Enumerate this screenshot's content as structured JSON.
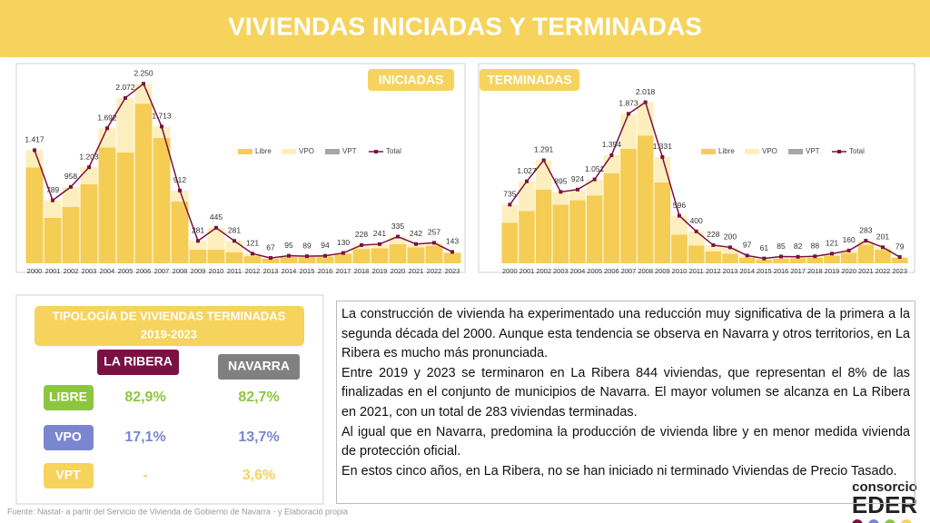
{
  "header": {
    "title": "VIVIENDAS INICIADAS Y TERMINADAS"
  },
  "chart_data": [
    {
      "type": "bar",
      "stacked": true,
      "title": "INICIADAS",
      "categories": [
        "2000",
        "2001",
        "2002",
        "2003",
        "2004",
        "2005",
        "2006",
        "2007",
        "2008",
        "2009",
        "2010",
        "2011",
        "2012",
        "2013",
        "2014",
        "2015",
        "2016",
        "2017",
        "2018",
        "2019",
        "2020",
        "2021",
        "2022",
        "2023"
      ],
      "series": [
        {
          "name": "Libre",
          "color": "#f5cd55",
          "values": [
            1200,
            570,
            707,
            990,
            1450,
            1390,
            2000,
            1570,
            775,
            170,
            170,
            140,
            90,
            60,
            80,
            80,
            85,
            120,
            180,
            190,
            240,
            200,
            220,
            130
          ]
        },
        {
          "name": "VPO",
          "color": "#fdefbd",
          "values": [
            217,
            219,
            251,
            213,
            242,
            682,
            250,
            143,
            137,
            111,
            275,
            141,
            31,
            7,
            15,
            9,
            9,
            10,
            48,
            51,
            95,
            42,
            37,
            13
          ]
        },
        {
          "name": "VPT",
          "color": "#a6a6a6",
          "values": [
            0,
            0,
            0,
            0,
            0,
            0,
            0,
            0,
            0,
            0,
            0,
            0,
            0,
            0,
            0,
            0,
            0,
            0,
            0,
            0,
            0,
            0,
            0,
            0
          ]
        },
        {
          "name": "Total",
          "type": "line",
          "color": "#7b1143",
          "values": [
            1417,
            789,
            958,
            1203,
            1692,
            2072,
            2250,
            1713,
            912,
            281,
            445,
            281,
            121,
            67,
            95,
            89,
            94,
            130,
            228,
            241,
            335,
            242,
            257,
            143
          ],
          "value_labels": [
            "1.417",
            "789",
            "958",
            "1.203",
            "1.692",
            "2.072",
            "2.250",
            "1.713",
            "912",
            "281",
            "445",
            "281",
            "121",
            "67",
            "95",
            "89",
            "94",
            "130",
            "228",
            "241",
            "335",
            "242",
            "257",
            "143"
          ]
        }
      ],
      "ylim": [
        0,
        2400
      ],
      "legend": "right"
    },
    {
      "type": "bar",
      "stacked": true,
      "title": "TERMINADAS",
      "categories": [
        "2000",
        "2001",
        "2002",
        "2003",
        "2004",
        "2005",
        "2006",
        "2007",
        "2008",
        "2009",
        "2010",
        "2011",
        "2012",
        "2013",
        "2014",
        "2015",
        "2016",
        "2017",
        "2018",
        "2019",
        "2020",
        "2021",
        "2022",
        "2023"
      ],
      "series": [
        {
          "name": "Libre",
          "color": "#f5cd55",
          "values": [
            510,
            655,
            925,
            735,
            790,
            850,
            1130,
            1435,
            1600,
            1015,
            360,
            225,
            150,
            120,
            70,
            45,
            60,
            65,
            70,
            95,
            130,
            235,
            170,
            70
          ]
        },
        {
          "name": "VPO",
          "color": "#fdefbd",
          "values": [
            225,
            372,
            366,
            160,
            134,
            201,
            224,
            438,
            418,
            316,
            236,
            175,
            78,
            80,
            27,
            16,
            25,
            17,
            18,
            26,
            30,
            48,
            31,
            9
          ]
        },
        {
          "name": "VPT",
          "color": "#a6a6a6",
          "values": [
            0,
            0,
            0,
            0,
            0,
            0,
            0,
            0,
            0,
            0,
            0,
            0,
            0,
            0,
            0,
            0,
            0,
            0,
            0,
            0,
            0,
            0,
            0,
            0
          ]
        },
        {
          "name": "Total",
          "type": "line",
          "color": "#7b1143",
          "values": [
            735,
            1027,
            1291,
            895,
            924,
            1051,
            1354,
            1873,
            2018,
            1331,
            596,
            400,
            228,
            200,
            97,
            61,
            85,
            82,
            88,
            121,
            160,
            283,
            201,
            79
          ],
          "value_labels": [
            "735",
            "1.027",
            "1.291",
            "895",
            "924",
            "1.051",
            "1.354",
            "1.873",
            "2.018",
            "1.331",
            "596",
            "400",
            "228",
            "200",
            "97",
            "61",
            "85",
            "82",
            "88",
            "121",
            "160",
            "283",
            "201",
            "79"
          ]
        }
      ],
      "ylim": [
        0,
        2400
      ],
      "legend": "right"
    }
  ],
  "table": {
    "title": "TIPOLOGÍA DE VIVIENDAS TERMINADAS",
    "period": "2019-2023",
    "columns": [
      "LA RIBERA",
      "NAVARRA"
    ],
    "rows": [
      [
        "LIBRE",
        "82,9%",
        "82,7%"
      ],
      [
        "VPO",
        "17,1%",
        "13,7%"
      ],
      [
        "VPT",
        "-",
        "3,6%"
      ]
    ]
  },
  "text": {
    "paragraphs": [
      "La construcción de vivienda ha experimentado una reducción muy significativa de la primera a la segunda década del 2000. Aunque esta tendencia se observa en Navarra y otros territorios, en La Ribera es mucho más pronunciada.",
      "Entre 2019 y 2023 se terminaron en La Ribera 844 viviendas, que representan el 8% de las finalizadas en el conjunto de municipios de Navarra. El mayor volumen se alcanza en La Ribera en 2021, con un total de 283 viviendas terminadas.",
      "Al igual que en Navarra, predomina la producción de vivienda libre y en menor medida vivienda de protección oficial.",
      "En  estos cinco años, en La Ribera, no se han iniciado ni terminado Viviendas de Precio Tasado."
    ]
  },
  "footer": {
    "source": "Fuente: Nastat- a partir del Servicio de Vivienda de Gobierno de Navarra - y Elaboració propia"
  },
  "logo": {
    "line1": "consorcio",
    "line2": "EDER"
  }
}
